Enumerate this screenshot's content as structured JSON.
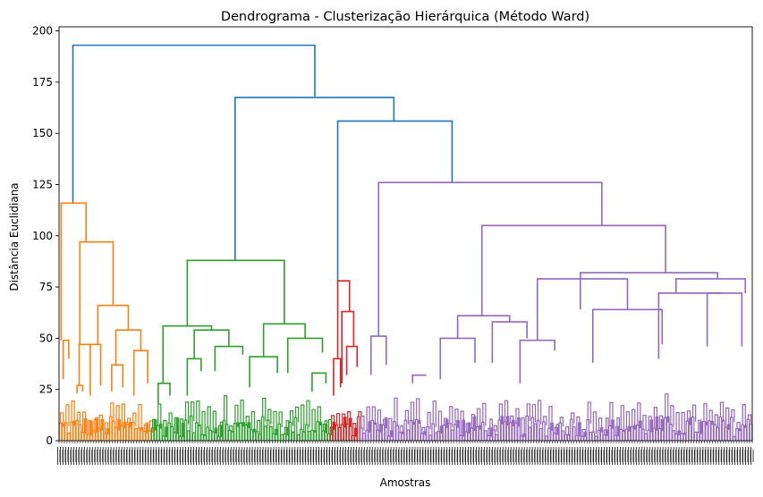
{
  "chart_data": {
    "type": "dendrogram",
    "title": "Dendrograma - Clusterização Hierárquica (Método Ward)",
    "xlabel": "Amostras",
    "ylabel": "Distância Euclidiana",
    "ylim": [
      0,
      202
    ],
    "yticks": [
      0,
      25,
      50,
      75,
      100,
      125,
      150,
      175,
      200
    ],
    "ytick_labels": [
      "0",
      "25",
      "50",
      "75",
      "100",
      "125",
      "150",
      "175",
      "200"
    ],
    "link_color": "#1f77b4",
    "clusters": [
      {
        "color": "#ff7f0e",
        "x_range": [
          0,
          13.3
        ],
        "top_height": 116
      },
      {
        "color": "#2ca02c",
        "x_range": [
          13.3,
          39.1
        ],
        "top_height": 88
      },
      {
        "color": "#d62728",
        "x_range": [
          39.1,
          43.4
        ],
        "top_height": 78
      },
      {
        "color": "#9467bd",
        "x_range": [
          43.4,
          100
        ],
        "top_height": 126
      }
    ],
    "links": [
      {
        "color": "#1f77b4",
        "left": [
          2.0,
          116
        ],
        "right": [
          36.9,
          168
        ],
        "height": 193
      },
      {
        "color": "#1f77b4",
        "left": [
          25.4,
          88
        ],
        "right": [
          48.3,
          156
        ],
        "height": 167.5
      },
      {
        "color": "#1f77b4",
        "left": [
          40.2,
          78
        ],
        "right": [
          56.7,
          126
        ],
        "height": 156
      },
      {
        "color": "#ff7f0e",
        "left": [
          0.3,
          49
        ],
        "right": [
          3.9,
          97
        ],
        "height": 116
      },
      {
        "color": "#ff7f0e",
        "left": [
          0.6,
          30
        ],
        "right": [
          1.4,
          40
        ],
        "height": 49
      },
      {
        "color": "#ff7f0e",
        "left": [
          3.0,
          47
        ],
        "right": [
          7.8,
          66
        ],
        "height": 97
      },
      {
        "color": "#ff7f0e",
        "left": [
          5.6,
          47
        ],
        "right": [
          10.0,
          54
        ],
        "height": 66
      },
      {
        "color": "#ff7f0e",
        "left": [
          2.9,
          27
        ],
        "right": [
          5.1,
          47
        ],
        "height": 47
      },
      {
        "color": "#ff7f0e",
        "left": [
          8.2,
          37
        ],
        "right": [
          11.8,
          44
        ],
        "height": 54
      },
      {
        "color": "#ff7f0e",
        "left": [
          10.8,
          22
        ],
        "right": [
          12.8,
          28
        ],
        "height": 44
      },
      {
        "color": "#ff7f0e",
        "left": [
          2.6,
          23
        ],
        "right": [
          3.4,
          24
        ],
        "height": 27
      },
      {
        "color": "#ff7f0e",
        "left": [
          4.5,
          22
        ],
        "right": [
          6.0,
          27
        ],
        "height": 47
      },
      {
        "color": "#ff7f0e",
        "left": [
          7.6,
          24
        ],
        "right": [
          9.2,
          26
        ],
        "height": 37
      },
      {
        "color": "#2ca02c",
        "left": [
          18.5,
          56
        ],
        "right": [
          32.5,
          57
        ],
        "height": 88
      },
      {
        "color": "#2ca02c",
        "left": [
          15.0,
          28
        ],
        "right": [
          22.0,
          54
        ],
        "height": 56
      },
      {
        "color": "#2ca02c",
        "left": [
          19.5,
          40
        ],
        "right": [
          24.5,
          46
        ],
        "height": 54
      },
      {
        "color": "#2ca02c",
        "left": [
          22.5,
          34
        ],
        "right": [
          26.5,
          42
        ],
        "height": 46
      },
      {
        "color": "#2ca02c",
        "left": [
          29.5,
          41
        ],
        "right": [
          35.5,
          50
        ],
        "height": 57
      },
      {
        "color": "#2ca02c",
        "left": [
          33.0,
          33
        ],
        "right": [
          38.0,
          43
        ],
        "height": 50
      },
      {
        "color": "#2ca02c",
        "left": [
          14.3,
          18
        ],
        "right": [
          16.0,
          22
        ],
        "height": 28
      },
      {
        "color": "#2ca02c",
        "left": [
          18.5,
          22
        ],
        "right": [
          20.5,
          34
        ],
        "height": 40
      },
      {
        "color": "#2ca02c",
        "left": [
          27.5,
          26
        ],
        "right": [
          31.5,
          33
        ],
        "height": 41
      },
      {
        "color": "#2ca02c",
        "left": [
          36.5,
          24
        ],
        "right": [
          38.5,
          28
        ],
        "height": 33
      },
      {
        "color": "#d62728",
        "left": [
          40.2,
          40
        ],
        "right": [
          41.9,
          63
        ],
        "height": 78
      },
      {
        "color": "#d62728",
        "left": [
          40.8,
          28
        ],
        "right": [
          42.5,
          46
        ],
        "height": 63
      },
      {
        "color": "#d62728",
        "left": [
          41.5,
          32
        ],
        "right": [
          43.0,
          36
        ],
        "height": 46
      },
      {
        "color": "#d62728",
        "left": [
          39.6,
          22
        ],
        "right": [
          40.6,
          26
        ],
        "height": 40
      },
      {
        "color": "#9467bd",
        "left": [
          46.1,
          51
        ],
        "right": [
          78.3,
          105
        ],
        "height": 126
      },
      {
        "color": "#9467bd",
        "left": [
          45.0,
          32
        ],
        "right": [
          47.2,
          37
        ],
        "height": 51
      },
      {
        "color": "#9467bd",
        "left": [
          61.0,
          61
        ],
        "right": [
          87.5,
          82
        ],
        "height": 105
      },
      {
        "color": "#9467bd",
        "left": [
          57.5,
          50
        ],
        "right": [
          65.0,
          58
        ],
        "height": 61
      },
      {
        "color": "#9467bd",
        "left": [
          55.0,
          30
        ],
        "right": [
          60.0,
          38
        ],
        "height": 50
      },
      {
        "color": "#9467bd",
        "left": [
          62.5,
          38
        ],
        "right": [
          67.5,
          50
        ],
        "height": 58
      },
      {
        "color": "#9467bd",
        "left": [
          75.2,
          64
        ],
        "right": [
          95.0,
          79
        ],
        "height": 82
      },
      {
        "color": "#9467bd",
        "left": [
          69.0,
          49
        ],
        "right": [
          82.0,
          64
        ],
        "height": 79
      },
      {
        "color": "#9467bd",
        "left": [
          66.5,
          28
        ],
        "right": [
          71.5,
          44
        ],
        "height": 49
      },
      {
        "color": "#9467bd",
        "left": [
          77.0,
          38
        ],
        "right": [
          87.0,
          47
        ],
        "height": 64
      },
      {
        "color": "#9467bd",
        "left": [
          89.0,
          72
        ],
        "right": [
          99.0,
          72
        ],
        "height": 79
      },
      {
        "color": "#9467bd",
        "left": [
          86.5,
          40
        ],
        "right": [
          95.5,
          72
        ],
        "height": 72
      },
      {
        "color": "#9467bd",
        "left": [
          93.5,
          46
        ],
        "right": [
          98.5,
          46
        ],
        "height": 72
      },
      {
        "color": "#9467bd",
        "left": [
          51.0,
          28
        ],
        "right": [
          53.0,
          32
        ],
        "height": 32
      }
    ],
    "leaf_count": 1000
  }
}
